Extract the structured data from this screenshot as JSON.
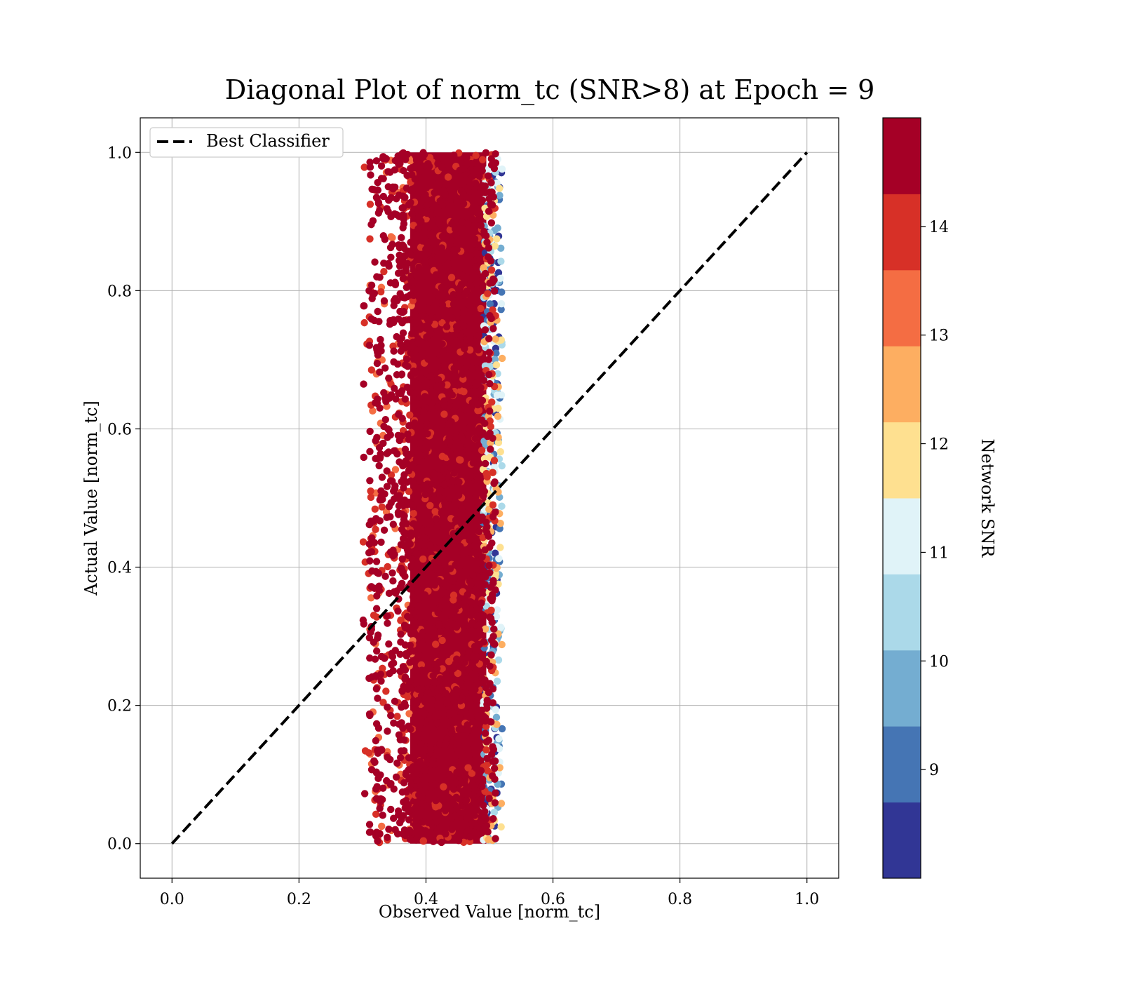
{
  "chart_data": {
    "type": "scatter",
    "title": "Diagonal Plot of norm_tc (SNR>8) at Epoch = 9",
    "xlabel": "Observed Value [norm_tc]",
    "ylabel": "Actual Value [norm_tc]",
    "xlim": [
      -0.05,
      1.05
    ],
    "ylim": [
      -0.05,
      1.05
    ],
    "xticks": [
      "0.0",
      "0.2",
      "0.4",
      "0.6",
      "0.8",
      "1.0"
    ],
    "yticks": [
      "0.0",
      "0.2",
      "0.4",
      "0.6",
      "0.8",
      "1.0"
    ],
    "grid": true,
    "legend": {
      "placement": "top-left",
      "entries": [
        "Best Classifier"
      ]
    },
    "reference_line": {
      "name": "Best Classifier",
      "style": "dashed",
      "color": "#000000",
      "x": [
        0.0,
        1.0
      ],
      "y": [
        0.0,
        1.0
      ]
    },
    "scatter_summary": {
      "x_range": [
        0.27,
        0.52
      ],
      "x_dense_range": [
        0.36,
        0.51
      ],
      "y_range": [
        0.0,
        1.0
      ],
      "color_by": "Network SNR",
      "dominant_color_value": "14+"
    },
    "colorbar": {
      "label": "Network SNR",
      "ticks": [
        "9",
        "10",
        "11",
        "12",
        "13",
        "14"
      ],
      "range": [
        8.0,
        15.0
      ],
      "bands": [
        "#313695",
        "#4575b4",
        "#74add1",
        "#abd9e9",
        "#e0f3f8",
        "#fee090",
        "#fdae61",
        "#f46d43",
        "#d73027",
        "#a50026"
      ]
    }
  }
}
